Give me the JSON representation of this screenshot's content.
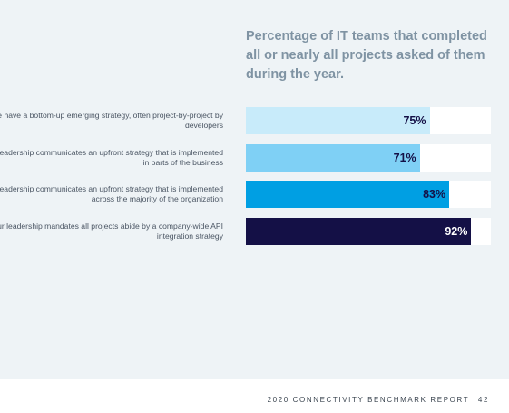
{
  "chart_data": {
    "type": "bar",
    "orientation": "horizontal",
    "title": "Percentage of IT teams that completed all or nearly all projects asked of them during the year.",
    "categories": [
      "We have a bottom-up emerging strategy, often project-by-project by developers",
      "Our leadership communicates an upfront strategy that is implemented in parts of the business",
      "Our leadership communicates an upfront strategy that is implemented across the majority of the organization",
      "Our leadership mandates all projects abide by a company-wide API integration strategy"
    ],
    "values": [
      75,
      71,
      83,
      92
    ],
    "value_labels": [
      "75%",
      "71%",
      "83%",
      "92%"
    ],
    "xlim": [
      0,
      100
    ],
    "grid": false,
    "colors": [
      "#c8ebfa",
      "#7fd0f5",
      "#009fe3",
      "#141046"
    ],
    "label_colors": [
      "#141046",
      "#141046",
      "#141046",
      "#ffffff"
    ]
  },
  "footer": {
    "report_title": "2020 CONNECTIVITY BENCHMARK REPORT",
    "page_number": "42"
  }
}
